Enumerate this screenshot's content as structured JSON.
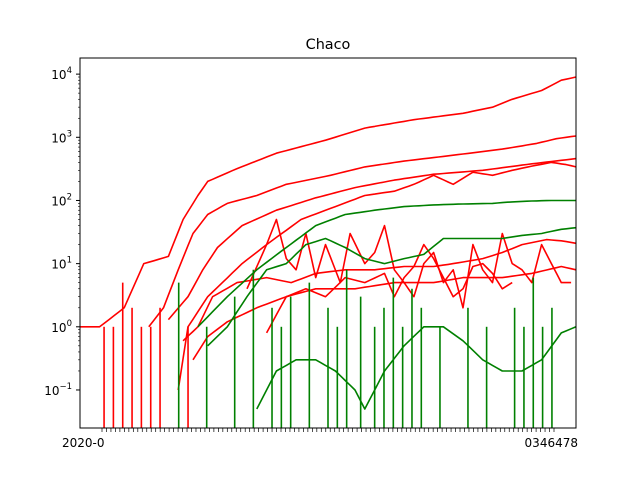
{
  "chart_data": {
    "type": "line",
    "title": "Chaco",
    "xlabel": "",
    "ylabel": "",
    "yscale": "log",
    "ylim": [
      0.025,
      18000
    ],
    "grid": false,
    "legend": "none",
    "colors": {
      "cumulative": "#ff0000",
      "active": "#008000"
    },
    "y_ticks": [
      {
        "base": "10",
        "exp": "−1",
        "value": 0.1
      },
      {
        "base": "10",
        "exp": "0",
        "value": 1
      },
      {
        "base": "10",
        "exp": "1",
        "value": 10
      },
      {
        "base": "10",
        "exp": "2",
        "value": 100
      },
      {
        "base": "10",
        "exp": "3",
        "value": 1000
      },
      {
        "base": "10",
        "exp": "4",
        "value": 10000
      }
    ],
    "x_tick_text_start": "2020-0",
    "x_tick_text_end": "0346478",
    "n_points": 102,
    "series": [
      {
        "color": "red",
        "anchors": [
          [
            0,
            1
          ],
          [
            4,
            1
          ],
          [
            9,
            2
          ],
          [
            13,
            10
          ],
          [
            18,
            13
          ],
          [
            21,
            50
          ],
          [
            24,
            120
          ],
          [
            26,
            200
          ],
          [
            32,
            320
          ],
          [
            40,
            560
          ],
          [
            50,
            900
          ],
          [
            58,
            1400
          ],
          [
            68,
            1900
          ],
          [
            78,
            2400
          ],
          [
            84,
            3000
          ],
          [
            88,
            4000
          ],
          [
            94,
            5500
          ],
          [
            98,
            8000
          ],
          [
            101,
            9000
          ]
        ]
      },
      {
        "color": "red",
        "anchors": [
          [
            14,
            1
          ],
          [
            17,
            2
          ],
          [
            20,
            8
          ],
          [
            23,
            30
          ],
          [
            26,
            60
          ],
          [
            30,
            90
          ],
          [
            36,
            120
          ],
          [
            42,
            180
          ],
          [
            50,
            240
          ],
          [
            58,
            340
          ],
          [
            66,
            420
          ],
          [
            76,
            520
          ],
          [
            86,
            650
          ],
          [
            93,
            800
          ],
          [
            97,
            950
          ],
          [
            101,
            1050
          ]
        ]
      },
      {
        "color": "red",
        "anchors": [
          [
            18,
            1.3
          ],
          [
            22,
            3
          ],
          [
            25,
            8
          ],
          [
            28,
            18
          ],
          [
            33,
            40
          ],
          [
            40,
            70
          ],
          [
            48,
            110
          ],
          [
            56,
            160
          ],
          [
            64,
            210
          ],
          [
            72,
            260
          ],
          [
            82,
            300
          ],
          [
            92,
            380
          ],
          [
            101,
            460
          ]
        ]
      },
      {
        "color": "red",
        "anchors": [
          [
            20,
            0.1
          ],
          [
            22,
            1
          ],
          [
            26,
            3
          ],
          [
            29,
            5
          ],
          [
            33,
            10
          ],
          [
            38,
            20
          ],
          [
            45,
            50
          ],
          [
            52,
            80
          ],
          [
            58,
            120
          ],
          [
            64,
            140
          ],
          [
            68,
            180
          ],
          [
            72,
            250
          ],
          [
            76,
            180
          ],
          [
            80,
            280
          ],
          [
            84,
            250
          ],
          [
            88,
            300
          ],
          [
            92,
            350
          ],
          [
            96,
            400
          ],
          [
            99,
            370
          ],
          [
            101,
            340
          ]
        ]
      },
      {
        "color": "red",
        "anchors": [
          [
            21,
            0.6
          ],
          [
            24,
            1
          ],
          [
            27,
            3
          ],
          [
            32,
            5
          ],
          [
            38,
            6
          ],
          [
            43,
            5
          ],
          [
            48,
            7
          ],
          [
            54,
            8
          ],
          [
            60,
            8
          ],
          [
            66,
            9
          ],
          [
            72,
            9
          ],
          [
            76,
            10
          ],
          [
            82,
            12
          ],
          [
            86,
            15
          ],
          [
            90,
            20
          ],
          [
            95,
            24
          ],
          [
            98,
            23
          ],
          [
            101,
            21
          ]
        ]
      },
      {
        "color": "red",
        "anchors": [
          [
            23,
            0.3
          ],
          [
            26,
            0.7
          ],
          [
            30,
            1.2
          ],
          [
            36,
            2
          ],
          [
            42,
            3
          ],
          [
            48,
            4
          ],
          [
            56,
            4
          ],
          [
            64,
            5
          ],
          [
            72,
            5
          ],
          [
            78,
            6
          ],
          [
            86,
            6
          ],
          [
            92,
            7
          ],
          [
            98,
            9
          ],
          [
            101,
            8
          ]
        ]
      },
      {
        "color": "red",
        "anchors": [
          [
            34,
            4
          ],
          [
            38,
            20
          ],
          [
            40,
            50
          ],
          [
            42,
            12
          ],
          [
            44,
            8
          ],
          [
            46,
            30
          ],
          [
            48,
            6
          ],
          [
            50,
            20
          ],
          [
            53,
            5
          ],
          [
            55,
            30
          ],
          [
            58,
            10
          ],
          [
            60,
            15
          ],
          [
            62,
            40
          ],
          [
            64,
            8
          ],
          [
            66,
            5
          ],
          [
            68,
            3
          ],
          [
            70,
            10
          ],
          [
            72,
            15
          ],
          [
            74,
            5
          ],
          [
            76,
            8
          ],
          [
            78,
            2
          ],
          [
            80,
            20
          ],
          [
            82,
            8
          ],
          [
            84,
            5
          ],
          [
            86,
            30
          ],
          [
            88,
            10
          ],
          [
            90,
            8
          ],
          [
            92,
            5
          ],
          [
            94,
            20
          ],
          [
            96,
            10
          ],
          [
            98,
            5
          ],
          [
            100,
            5
          ]
        ]
      },
      {
        "color": "red",
        "anchors": [
          [
            38,
            0.8
          ],
          [
            42,
            3
          ],
          [
            46,
            4
          ],
          [
            50,
            3
          ],
          [
            54,
            6
          ],
          [
            58,
            5
          ],
          [
            62,
            7
          ],
          [
            64,
            3
          ],
          [
            66,
            6
          ],
          [
            68,
            9
          ],
          [
            70,
            20
          ],
          [
            72,
            12
          ],
          [
            74,
            6
          ],
          [
            76,
            3
          ],
          [
            78,
            4
          ],
          [
            80,
            9
          ],
          [
            82,
            10
          ],
          [
            84,
            7
          ],
          [
            86,
            4
          ],
          [
            88,
            5
          ]
        ]
      },
      {
        "color": "green",
        "anchors": [
          [
            24,
            1
          ],
          [
            30,
            3
          ],
          [
            36,
            8
          ],
          [
            42,
            18
          ],
          [
            48,
            40
          ],
          [
            54,
            60
          ],
          [
            60,
            70
          ],
          [
            66,
            80
          ],
          [
            72,
            85
          ],
          [
            78,
            88
          ],
          [
            84,
            90
          ],
          [
            88,
            95
          ],
          [
            92,
            98
          ],
          [
            96,
            100
          ],
          [
            101,
            100
          ]
        ]
      },
      {
        "color": "green",
        "anchors": [
          [
            26,
            0.5
          ],
          [
            30,
            1
          ],
          [
            34,
            3
          ],
          [
            38,
            8
          ],
          [
            42,
            10
          ],
          [
            46,
            20
          ],
          [
            50,
            25
          ],
          [
            54,
            18
          ],
          [
            58,
            12
          ],
          [
            62,
            10
          ],
          [
            66,
            12
          ],
          [
            70,
            14
          ],
          [
            74,
            25
          ],
          [
            78,
            25
          ],
          [
            82,
            25
          ],
          [
            86,
            25
          ],
          [
            90,
            28
          ],
          [
            94,
            30
          ],
          [
            98,
            35
          ],
          [
            101,
            37
          ]
        ]
      },
      {
        "color": "green",
        "anchors": [
          [
            36,
            0.05
          ],
          [
            38,
            0.1
          ],
          [
            40,
            0.2
          ],
          [
            44,
            0.3
          ],
          [
            48,
            0.3
          ],
          [
            52,
            0.2
          ],
          [
            56,
            0.1
          ],
          [
            58,
            0.05
          ],
          [
            62,
            0.2
          ],
          [
            66,
            0.5
          ],
          [
            70,
            1
          ],
          [
            74,
            1
          ],
          [
            78,
            0.6
          ],
          [
            82,
            0.3
          ],
          [
            86,
            0.2
          ],
          [
            90,
            0.2
          ],
          [
            94,
            0.3
          ],
          [
            98,
            0.8
          ],
          [
            101,
            1
          ]
        ]
      }
    ]
  }
}
